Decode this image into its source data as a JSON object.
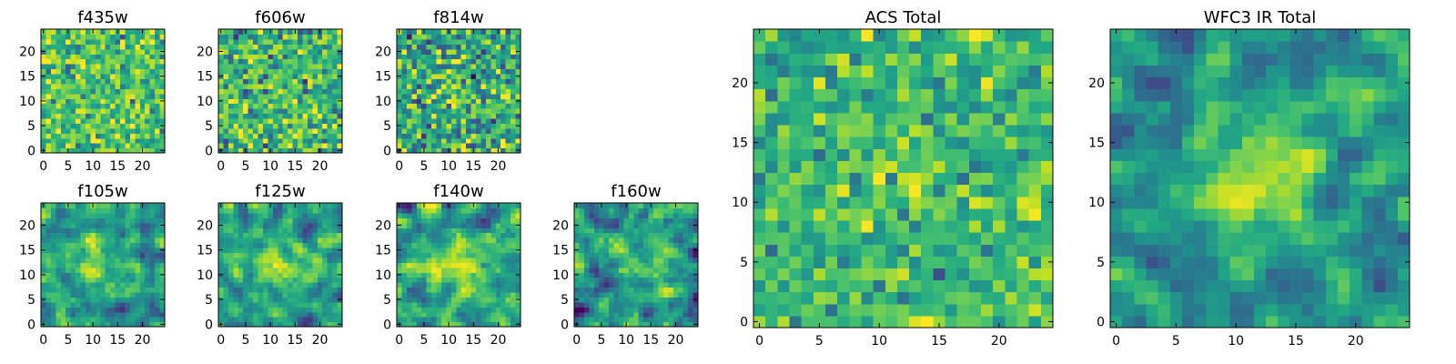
{
  "figure": {
    "background": "#ffffff"
  },
  "colormap": "viridis",
  "chart_data": [
    {
      "type": "heatmap",
      "title": "f435w",
      "grid_size": 25,
      "xlim": [
        0,
        24
      ],
      "ylim": [
        0,
        24
      ],
      "xticks": [
        "0",
        "5",
        "10",
        "15",
        "20"
      ],
      "yticks": [
        "0",
        "5",
        "10",
        "15",
        "20"
      ],
      "value_range": [
        0,
        1
      ],
      "mean": 0.72,
      "noise": 0.16,
      "source_peak": 0.0,
      "smooth": false,
      "seed": 11
    },
    {
      "type": "heatmap",
      "title": "f606w",
      "grid_size": 25,
      "xlim": [
        0,
        24
      ],
      "ylim": [
        0,
        24
      ],
      "xticks": [
        "0",
        "5",
        "10",
        "15",
        "20"
      ],
      "yticks": [
        "0",
        "5",
        "10",
        "15",
        "20"
      ],
      "value_range": [
        0,
        1
      ],
      "mean": 0.66,
      "noise": 0.18,
      "source_peak": 0.05,
      "smooth": false,
      "seed": 23
    },
    {
      "type": "heatmap",
      "title": "f814w",
      "grid_size": 25,
      "xlim": [
        0,
        24
      ],
      "ylim": [
        0,
        24
      ],
      "xticks": [
        "0",
        "5",
        "10",
        "15",
        "20"
      ],
      "yticks": [
        "0",
        "5",
        "10",
        "15",
        "20"
      ],
      "value_range": [
        0,
        1
      ],
      "mean": 0.62,
      "noise": 0.2,
      "source_peak": 0.05,
      "smooth": false,
      "seed": 37
    },
    {
      "type": "heatmap",
      "title": "f105w",
      "grid_size": 25,
      "xlim": [
        0,
        24
      ],
      "ylim": [
        0,
        24
      ],
      "xticks": [
        "0",
        "5",
        "10",
        "15",
        "20"
      ],
      "yticks": [
        "0",
        "5",
        "10",
        "15",
        "20"
      ],
      "value_range": [
        0,
        1
      ],
      "mean": 0.55,
      "noise": 0.2,
      "source_peak": 0.3,
      "smooth": true,
      "seed": 41
    },
    {
      "type": "heatmap",
      "title": "f125w",
      "grid_size": 25,
      "xlim": [
        0,
        24
      ],
      "ylim": [
        0,
        24
      ],
      "xticks": [
        "0",
        "5",
        "10",
        "15",
        "20"
      ],
      "yticks": [
        "0",
        "5",
        "10",
        "15",
        "20"
      ],
      "value_range": [
        0,
        1
      ],
      "mean": 0.57,
      "noise": 0.2,
      "source_peak": 0.3,
      "smooth": true,
      "seed": 53
    },
    {
      "type": "heatmap",
      "title": "f140w",
      "grid_size": 25,
      "xlim": [
        0,
        24
      ],
      "ylim": [
        0,
        24
      ],
      "xticks": [
        "0",
        "5",
        "10",
        "15",
        "20"
      ],
      "yticks": [
        "0",
        "5",
        "10",
        "15",
        "20"
      ],
      "value_range": [
        0,
        1
      ],
      "mean": 0.55,
      "noise": 0.2,
      "source_peak": 0.3,
      "smooth": true,
      "seed": 67
    },
    {
      "type": "heatmap",
      "title": "f160w",
      "grid_size": 25,
      "xlim": [
        0,
        24
      ],
      "ylim": [
        0,
        24
      ],
      "xticks": [
        "0",
        "5",
        "10",
        "15",
        "20"
      ],
      "yticks": [
        "0",
        "5",
        "10",
        "15",
        "20"
      ],
      "value_range": [
        0,
        1
      ],
      "mean": 0.52,
      "noise": 0.22,
      "source_peak": 0.3,
      "smooth": true,
      "seed": 79
    },
    {
      "type": "heatmap",
      "title": "ACS Total",
      "grid_size": 25,
      "xlim": [
        0,
        24
      ],
      "ylim": [
        0,
        24
      ],
      "xticks": [
        "0",
        "5",
        "10",
        "15",
        "20"
      ],
      "yticks": [
        "0",
        "5",
        "10",
        "15",
        "20"
      ],
      "value_range": [
        0,
        1
      ],
      "mean": 0.66,
      "noise": 0.14,
      "source_peak": 0.08,
      "smooth": false,
      "seed": 97
    },
    {
      "type": "heatmap",
      "title": "WFC3 IR Total",
      "grid_size": 25,
      "xlim": [
        0,
        24
      ],
      "ylim": [
        0,
        24
      ],
      "xticks": [
        "0",
        "5",
        "10",
        "15",
        "20"
      ],
      "yticks": [
        "0",
        "5",
        "10",
        "15",
        "20"
      ],
      "value_range": [
        0,
        1
      ],
      "mean": 0.5,
      "noise": 0.17,
      "source_peak": 0.42,
      "smooth": true,
      "seed": 131
    }
  ]
}
